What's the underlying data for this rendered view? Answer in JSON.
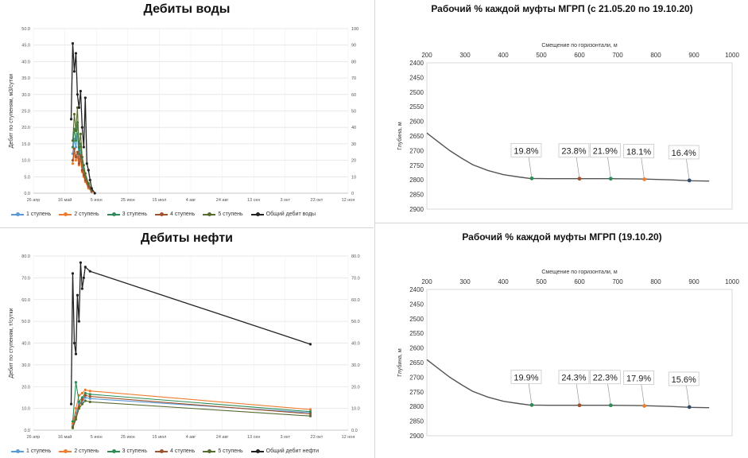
{
  "panels": {
    "water": {
      "title": "Дебиты воды",
      "ylabel": "Дебит по ступеням, м3/сутки",
      "left_ticks": [
        "0.0",
        "5.0",
        "10.0",
        "15.0",
        "20.0",
        "25.0",
        "30.0",
        "35.0",
        "40.0",
        "45.0",
        "50.0"
      ],
      "right_ticks": [
        "0",
        "10",
        "20",
        "30",
        "40",
        "50",
        "60",
        "70",
        "80",
        "90",
        "100"
      ],
      "x_ticks": [
        "26 апр",
        "16 май",
        "5 июн",
        "25 июн",
        "15 июл",
        "4 авг",
        "24 авг",
        "13 сен",
        "3 окт",
        "23 окт",
        "12 ноя"
      ],
      "legend": [
        "1 ступень",
        "2 ступень",
        "3 ступень",
        "4 ступень",
        "5 ступень",
        "Общий дебит воды"
      ]
    },
    "oil": {
      "title": "Дебиты нефти",
      "ylabel": "Дебит по ступеням, т/сутки",
      "left_ticks": [
        "0.0",
        "10.0",
        "20.0",
        "30.0",
        "40.0",
        "50.0",
        "60.0",
        "70.0",
        "80.0"
      ],
      "right_ticks": [
        "0.0",
        "10.0",
        "20.0",
        "30.0",
        "40.0",
        "50.0",
        "60.0",
        "70.0",
        "80.0"
      ],
      "x_ticks": [
        "26 апр",
        "16 май",
        "5 июн",
        "25 июн",
        "15 июл",
        "4 авг",
        "24 авг",
        "13 сен",
        "3 окт",
        "23 окт",
        "12 ноя"
      ],
      "legend": [
        "1 ступень",
        "2 ступень",
        "3 ступень",
        "4 ступень",
        "5 ступень",
        "Общий дебит нефти"
      ]
    },
    "profile_top": {
      "title": "Рабочий % каждой муфты МГРП (с 21.05.20 по 19.10.20)",
      "xlabel": "Смещение по горизонтали, м",
      "ylabel": "Глубина, м"
    },
    "profile_bottom": {
      "title": "Рабочий % каждой муфты МГРП (19.10.20)",
      "xlabel": "Смещение по горизонтали, м",
      "ylabel": "Глубина, м"
    }
  },
  "colors": {
    "stage1": "#5b9bd5",
    "stage2": "#ed7d31",
    "stage3": "#2e8b57",
    "stage4": "#a0522d",
    "stage5": "#556b2f",
    "total": "#222222",
    "trajectory": "#555555"
  },
  "chart_data": [
    {
      "type": "line",
      "panel": "water",
      "title": "Дебиты воды",
      "ylabel": "Дебит по ступеням, м3/сутки",
      "ylim": [
        0,
        50
      ],
      "y2lim": [
        0,
        100
      ],
      "xlim": [
        "2020-04-26",
        "2020-11-12"
      ],
      "grid": true,
      "legend_position": "bottom",
      "series": [
        {
          "name": "1 ступень",
          "axis": "left",
          "x": [
            "2020-05-21",
            "2020-05-22",
            "2020-05-23",
            "2020-05-24",
            "2020-05-25",
            "2020-05-26",
            "2020-05-27",
            "2020-05-28",
            "2020-05-29",
            "2020-05-31",
            "2020-06-02"
          ],
          "y": [
            12.0,
            16.5,
            14.0,
            18.0,
            10.5,
            13.0,
            8.0,
            6.0,
            4.5,
            2.0,
            1.0
          ]
        },
        {
          "name": "2 ступень",
          "axis": "left",
          "x": [
            "2020-05-21",
            "2020-05-22",
            "2020-05-23",
            "2020-05-24",
            "2020-05-25",
            "2020-05-26",
            "2020-05-27",
            "2020-05-28",
            "2020-05-29",
            "2020-05-31",
            "2020-06-02"
          ],
          "y": [
            9.0,
            12.0,
            10.0,
            11.0,
            8.5,
            10.0,
            6.5,
            5.0,
            3.5,
            1.5,
            0.5
          ]
        },
        {
          "name": "3 ступень",
          "axis": "left",
          "x": [
            "2020-05-21",
            "2020-05-22",
            "2020-05-23",
            "2020-05-24",
            "2020-05-25",
            "2020-05-26",
            "2020-05-27",
            "2020-05-28",
            "2020-05-29",
            "2020-05-31",
            "2020-06-02"
          ],
          "y": [
            14.0,
            19.5,
            16.0,
            21.5,
            12.0,
            15.0,
            9.5,
            7.0,
            5.0,
            2.5,
            1.0
          ]
        },
        {
          "name": "4 ступень",
          "axis": "left",
          "x": [
            "2020-05-21",
            "2020-05-22",
            "2020-05-23",
            "2020-05-24",
            "2020-05-25",
            "2020-05-26",
            "2020-05-27",
            "2020-05-28",
            "2020-05-29",
            "2020-05-31",
            "2020-06-02"
          ],
          "y": [
            10.0,
            13.5,
            11.0,
            12.5,
            9.0,
            11.5,
            7.0,
            5.5,
            4.0,
            2.0,
            0.5
          ]
        },
        {
          "name": "5 ступень",
          "axis": "left",
          "x": [
            "2020-05-21",
            "2020-05-22",
            "2020-05-23",
            "2020-05-24",
            "2020-05-25",
            "2020-05-26",
            "2020-05-27",
            "2020-05-28",
            "2020-05-29",
            "2020-05-31",
            "2020-06-02"
          ],
          "y": [
            16.0,
            24.0,
            19.0,
            26.0,
            14.0,
            18.0,
            11.0,
            8.5,
            6.0,
            3.0,
            1.0
          ]
        },
        {
          "name": "Общий дебит воды",
          "axis": "right",
          "x": [
            "2020-05-20",
            "2020-05-21",
            "2020-05-22",
            "2020-05-23",
            "2020-05-24",
            "2020-05-25",
            "2020-05-26",
            "2020-05-27",
            "2020-05-28",
            "2020-05-29",
            "2020-05-30",
            "2020-05-31",
            "2020-06-01",
            "2020-06-02",
            "2020-06-04"
          ],
          "y": [
            45.0,
            91.0,
            74.0,
            85.0,
            60.0,
            52.0,
            62.0,
            40.0,
            28.0,
            58.0,
            18.0,
            14.0,
            8.0,
            3.0,
            0.0
          ]
        }
      ]
    },
    {
      "type": "line",
      "panel": "oil",
      "title": "Дебиты нефти",
      "ylabel": "Дебит по ступеням, т/сутки",
      "ylim": [
        0,
        80
      ],
      "y2lim": [
        0,
        80
      ],
      "xlim": [
        "2020-04-26",
        "2020-11-12"
      ],
      "grid": true,
      "legend_position": "bottom",
      "series": [
        {
          "name": "1 ступень",
          "axis": "left",
          "x": [
            "2020-05-21",
            "2020-05-23",
            "2020-05-25",
            "2020-05-27",
            "2020-05-29",
            "2020-06-01",
            "2020-10-19"
          ],
          "y": [
            2.0,
            8.0,
            12.0,
            13.0,
            15.0,
            14.5,
            8.0
          ]
        },
        {
          "name": "2 ступень",
          "axis": "left",
          "x": [
            "2020-05-21",
            "2020-05-23",
            "2020-05-25",
            "2020-05-27",
            "2020-05-29",
            "2020-06-01",
            "2020-10-19"
          ],
          "y": [
            3.0,
            10.0,
            16.0,
            17.0,
            18.5,
            18.0,
            9.5
          ]
        },
        {
          "name": "3 ступень",
          "axis": "left",
          "x": [
            "2020-05-21",
            "2020-05-23",
            "2020-05-25",
            "2020-05-27",
            "2020-05-29",
            "2020-06-01",
            "2020-10-19"
          ],
          "y": [
            4.0,
            22.0,
            13.0,
            15.0,
            17.0,
            16.5,
            8.5
          ]
        },
        {
          "name": "4 ступень",
          "axis": "left",
          "x": [
            "2020-05-21",
            "2020-05-23",
            "2020-05-25",
            "2020-05-27",
            "2020-05-29",
            "2020-06-01",
            "2020-10-19"
          ],
          "y": [
            1.5,
            6.0,
            11.0,
            14.0,
            16.0,
            15.5,
            7.5
          ]
        },
        {
          "name": "5 ступень",
          "axis": "left",
          "x": [
            "2020-05-21",
            "2020-05-23",
            "2020-05-25",
            "2020-05-27",
            "2020-05-29",
            "2020-06-01",
            "2020-10-19"
          ],
          "y": [
            1.0,
            5.0,
            10.0,
            12.0,
            13.5,
            13.0,
            6.5
          ]
        },
        {
          "name": "Общий дебит нефти",
          "axis": "right",
          "x": [
            "2020-05-20",
            "2020-05-21",
            "2020-05-22",
            "2020-05-23",
            "2020-05-24",
            "2020-05-25",
            "2020-05-26",
            "2020-05-27",
            "2020-05-28",
            "2020-05-29",
            "2020-06-01",
            "2020-10-19"
          ],
          "y": [
            12.0,
            72.0,
            40.0,
            35.0,
            62.0,
            50.0,
            77.0,
            65.0,
            70.0,
            75.0,
            73.0,
            39.5
          ]
        }
      ]
    },
    {
      "type": "line",
      "panel": "profile_top",
      "title": "Рабочий % каждой муфты МГРП (с 21.05.20 по 19.10.20)",
      "xlabel": "Смещение по горизонтали, м",
      "ylabel": "Глубина, м",
      "x_axis_position": "top",
      "y_inverted": true,
      "xlim": [
        200,
        1000
      ],
      "ylim": [
        2400,
        2900
      ],
      "x_ticks": [
        200,
        300,
        400,
        500,
        600,
        700,
        800,
        900,
        1000
      ],
      "y_ticks": [
        2400,
        2450,
        2500,
        2550,
        2600,
        2650,
        2700,
        2750,
        2800,
        2850,
        2900
      ],
      "series": [
        {
          "name": "trajectory",
          "x": [
            200,
            230,
            260,
            290,
            320,
            360,
            400,
            440,
            470,
            520,
            600,
            680,
            760,
            840,
            890,
            940
          ],
          "y": [
            2640,
            2670,
            2700,
            2725,
            2748,
            2768,
            2782,
            2790,
            2795,
            2796,
            2796,
            2796,
            2797,
            2800,
            2803,
            2804
          ]
        }
      ],
      "points": [
        {
          "x": 475,
          "y": 2795,
          "label": "19.8%",
          "color": "#2e8b57"
        },
        {
          "x": 600,
          "y": 2796,
          "label": "23.8%",
          "color": "#a0522d"
        },
        {
          "x": 682,
          "y": 2796,
          "label": "21.9%",
          "color": "#2e8b57"
        },
        {
          "x": 770,
          "y": 2798,
          "label": "18.1%",
          "color": "#ed7d31"
        },
        {
          "x": 888,
          "y": 2802,
          "label": "16.4%",
          "color": "#2f4f6f"
        }
      ]
    },
    {
      "type": "line",
      "panel": "profile_bottom",
      "title": "Рабочий % каждой муфты МГРП (19.10.20)",
      "xlabel": "Смещение по горизонтали, м",
      "ylabel": "Глубина, м",
      "x_axis_position": "top",
      "y_inverted": true,
      "xlim": [
        200,
        1000
      ],
      "ylim": [
        2400,
        2900
      ],
      "x_ticks": [
        200,
        300,
        400,
        500,
        600,
        700,
        800,
        900,
        1000
      ],
      "y_ticks": [
        2400,
        2450,
        2500,
        2550,
        2600,
        2650,
        2700,
        2750,
        2800,
        2850,
        2900
      ],
      "series": [
        {
          "name": "trajectory",
          "x": [
            200,
            230,
            260,
            290,
            320,
            360,
            400,
            440,
            470,
            520,
            600,
            680,
            760,
            840,
            890,
            940
          ],
          "y": [
            2640,
            2670,
            2700,
            2725,
            2748,
            2768,
            2782,
            2790,
            2795,
            2796,
            2796,
            2796,
            2797,
            2800,
            2803,
            2804
          ]
        }
      ],
      "points": [
        {
          "x": 475,
          "y": 2795,
          "label": "19.9%",
          "color": "#2e8b57"
        },
        {
          "x": 600,
          "y": 2796,
          "label": "24.3%",
          "color": "#a0522d"
        },
        {
          "x": 682,
          "y": 2796,
          "label": "22.3%",
          "color": "#2e8b57"
        },
        {
          "x": 770,
          "y": 2798,
          "label": "17.9%",
          "color": "#ed7d31"
        },
        {
          "x": 888,
          "y": 2802,
          "label": "15.6%",
          "color": "#2f4f6f"
        }
      ]
    }
  ]
}
